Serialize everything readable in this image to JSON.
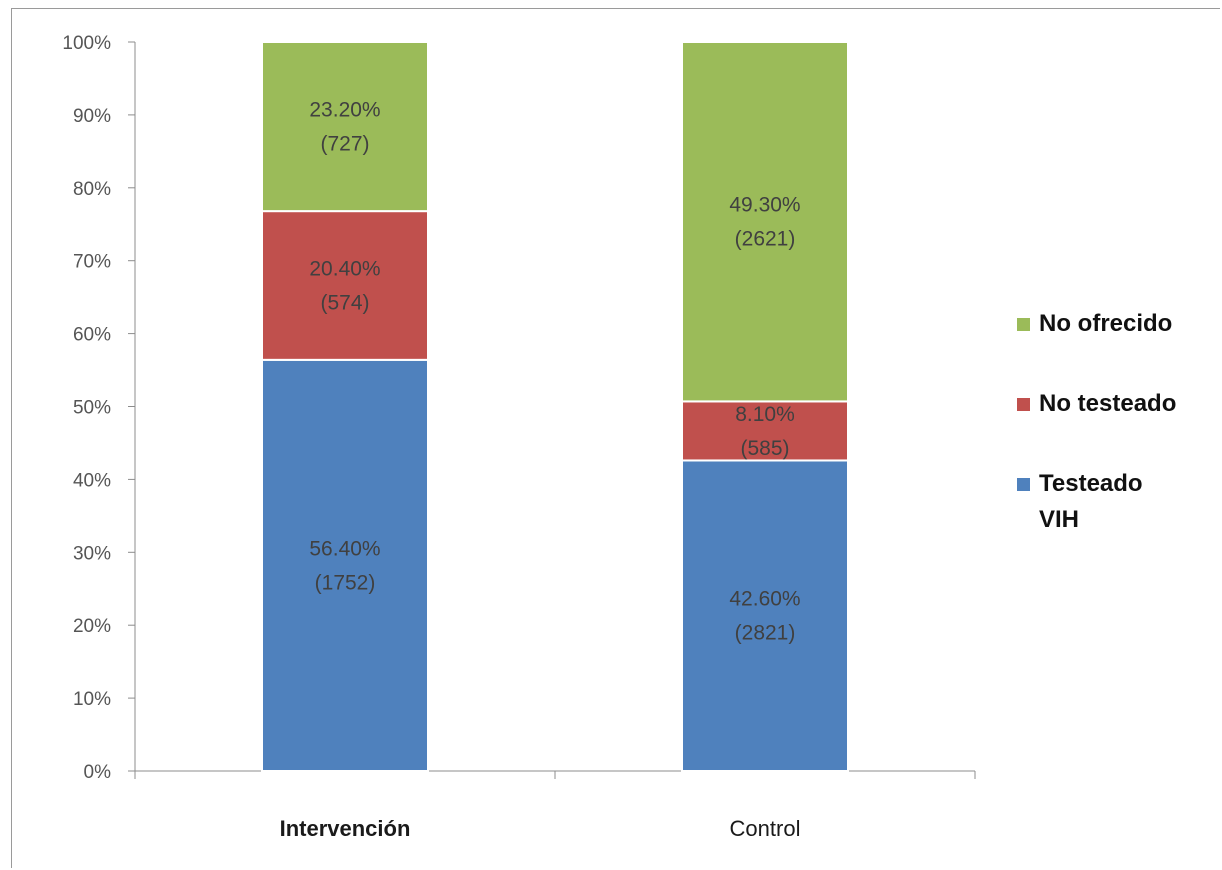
{
  "chart_data": {
    "type": "bar",
    "stacked": true,
    "categories": [
      "Intervención",
      "Control"
    ],
    "category_bold": [
      true,
      false
    ],
    "series": [
      {
        "name": "Testeado VIH",
        "name_lines": [
          "Testeado",
          "VIH"
        ],
        "color": "#4f81bd",
        "values": [
          56.4,
          42.6
        ],
        "labels": [
          [
            "56.40%",
            "(1752)"
          ],
          [
            "42.60%",
            "(2821)"
          ]
        ]
      },
      {
        "name": "No testeado",
        "name_lines": [
          "No testeado"
        ],
        "color": "#c0504d",
        "values": [
          20.4,
          8.1
        ],
        "labels": [
          [
            "20.40%",
            "(574)"
          ],
          [
            "8.10%",
            "(585)"
          ]
        ]
      },
      {
        "name": "No ofrecido",
        "name_lines": [
          "No ofrecido"
        ],
        "color": "#9bbb59",
        "values": [
          23.2,
          49.3
        ],
        "labels": [
          [
            "23.20%",
            "(727)"
          ],
          [
            "49.30%",
            "(2621)"
          ]
        ]
      }
    ],
    "y_ticks": [
      "0%",
      "10%",
      "20%",
      "30%",
      "40%",
      "50%",
      "60%",
      "70%",
      "80%",
      "90%",
      "100%"
    ],
    "ylim": [
      0,
      100
    ],
    "title": "",
    "xlabel": "",
    "ylabel": "",
    "grid": false,
    "legend_position": "right"
  }
}
